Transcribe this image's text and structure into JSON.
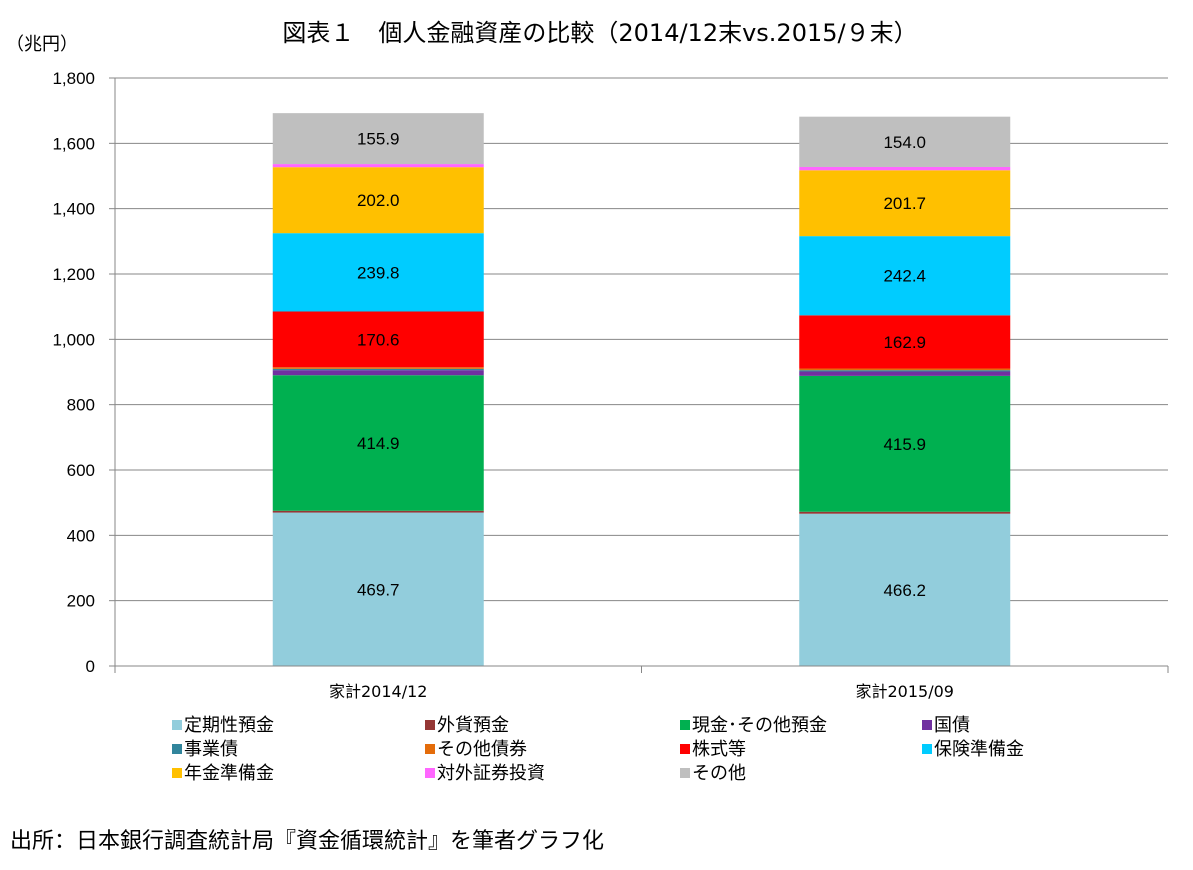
{
  "chart_data": {
    "type": "bar",
    "stacked": true,
    "title": "図表１　個人金融資産の比較（2014/12末vs.2015/９末）",
    "unit_label": "（兆円）",
    "ylim": [
      0,
      1800
    ],
    "y_ticks": [
      "0",
      "200",
      "400",
      "600",
      "800",
      "1,000",
      "1,200",
      "1,400",
      "1,600",
      "1,800"
    ],
    "grid": true,
    "legend_position": "bottom",
    "categories": [
      "家計2014/12",
      "家計2015/09"
    ],
    "series": [
      {
        "name": "定期性預金",
        "color": "#92CDDC",
        "values": [
          469.7,
          466.2
        ],
        "labels": [
          "469.7",
          "466.2"
        ]
      },
      {
        "name": "外貨預金",
        "color": "#953735",
        "values": [
          5.5,
          6.0
        ],
        "labels": [
          "",
          ""
        ]
      },
      {
        "name": "現金･その他預金",
        "color": "#00B050",
        "values": [
          414.9,
          415.9
        ],
        "labels": [
          "414.9",
          "415.9"
        ]
      },
      {
        "name": "国債",
        "color": "#7030A0",
        "values": [
          15.5,
          13.5
        ],
        "labels": [
          "",
          ""
        ]
      },
      {
        "name": "事業債",
        "color": "#31859C",
        "values": [
          4.0,
          4.0
        ],
        "labels": [
          "",
          ""
        ]
      },
      {
        "name": "その他債券",
        "color": "#E46C0A",
        "values": [
          5.0,
          5.0
        ],
        "labels": [
          "",
          ""
        ]
      },
      {
        "name": "株式等",
        "color": "#FF0000",
        "values": [
          170.6,
          162.9
        ],
        "labels": [
          "170.6",
          "162.9"
        ]
      },
      {
        "name": "保険準備金",
        "color": "#00CCFF",
        "values": [
          239.8,
          242.4
        ],
        "labels": [
          "239.8",
          "242.4"
        ]
      },
      {
        "name": "年金準備金",
        "color": "#FFC000",
        "values": [
          202.0,
          201.7
        ],
        "labels": [
          "202.0",
          "201.7"
        ]
      },
      {
        "name": "対外証券投資",
        "color": "#FF66FF",
        "values": [
          9.5,
          10.0
        ],
        "labels": [
          "",
          ""
        ]
      },
      {
        "name": "その他",
        "color": "#BFBFBF",
        "values": [
          155.9,
          154.0
        ],
        "labels": [
          "155.9",
          "154.0"
        ]
      }
    ]
  },
  "source_note": "出所：日本銀行調査統計局『資金循環統計』を筆者グラフ化"
}
